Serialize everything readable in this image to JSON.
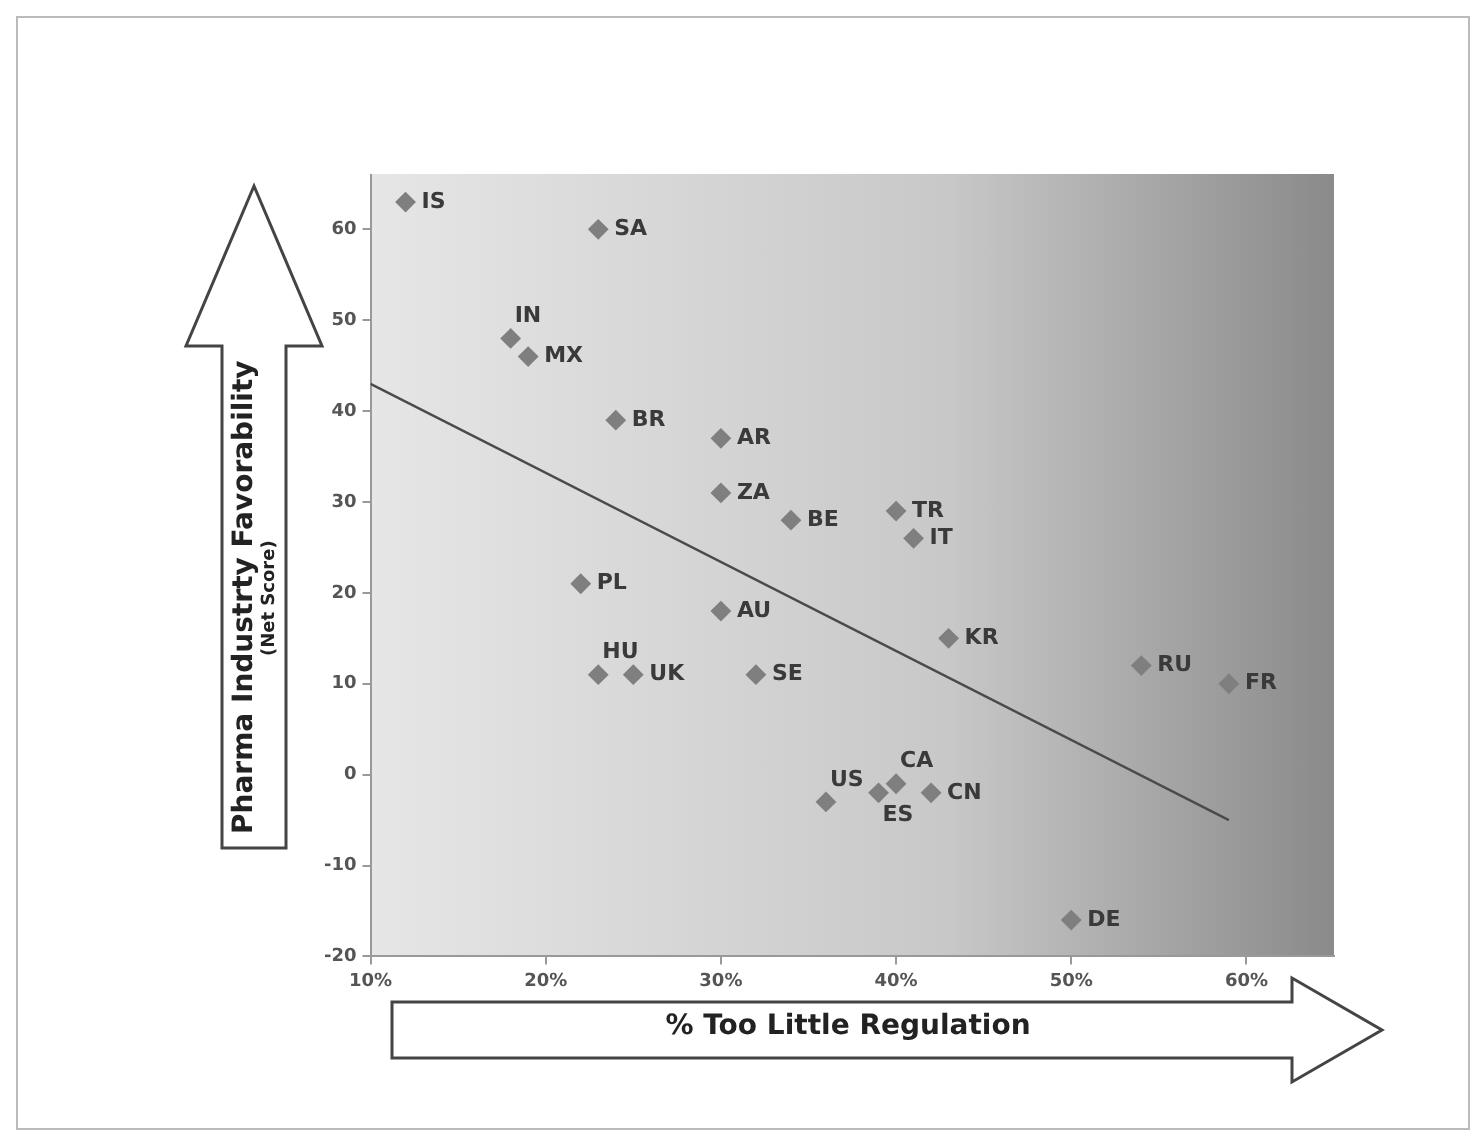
{
  "chart_data": {
    "type": "scatter",
    "xlabel": "% Too Little Regulation",
    "ylabel": "Pharma Industrty Favorability\n(Net Score)",
    "legend": false,
    "xlim": [
      10,
      65
    ],
    "xticks": [
      {
        "value": 10,
        "label": "10%"
      },
      {
        "value": 20,
        "label": "20%"
      },
      {
        "value": 30,
        "label": "30%"
      },
      {
        "value": 40,
        "label": "40%"
      },
      {
        "value": 50,
        "label": "50%"
      },
      {
        "value": 60,
        "label": "60%"
      }
    ],
    "ylim": [
      -20,
      66
    ],
    "yticks": [
      -20,
      -10,
      0,
      10,
      20,
      30,
      40,
      50,
      60
    ],
    "series": [
      {
        "marker": "diamond",
        "color": "#7f7f7f",
        "x": [
          12,
          23,
          18,
          19,
          24,
          30,
          30,
          34,
          40,
          41,
          22,
          30,
          43,
          54,
          59,
          23,
          25,
          32,
          40,
          39,
          42,
          36,
          50
        ],
        "values": [
          63,
          60,
          48,
          46,
          39,
          37,
          31,
          28,
          29,
          26,
          21,
          18,
          15,
          12,
          10,
          11,
          11,
          11,
          -1,
          -2,
          -2,
          -3,
          -16
        ]
      },
      {
        "type": "line",
        "color": "#4a4a4a",
        "x": [
          10,
          59
        ],
        "values": [
          43,
          -5
        ]
      }
    ],
    "annotations": [
      {
        "text": "IS",
        "x": 12,
        "y": 63
      },
      {
        "text": "SA",
        "x": 23,
        "y": 60
      },
      {
        "text": "IN",
        "x": 18,
        "y": 48
      },
      {
        "text": "MX",
        "x": 19,
        "y": 46
      },
      {
        "text": "BR",
        "x": 24,
        "y": 39
      },
      {
        "text": "AR",
        "x": 30,
        "y": 37
      },
      {
        "text": "ZA",
        "x": 30,
        "y": 31
      },
      {
        "text": "BE",
        "x": 34,
        "y": 28
      },
      {
        "text": "TR",
        "x": 40,
        "y": 29
      },
      {
        "text": "IT",
        "x": 41,
        "y": 26
      },
      {
        "text": "PL",
        "x": 22,
        "y": 21
      },
      {
        "text": "AU",
        "x": 30,
        "y": 18
      },
      {
        "text": "KR",
        "x": 43,
        "y": 15
      },
      {
        "text": "RU",
        "x": 54,
        "y": 12
      },
      {
        "text": "FR",
        "x": 59,
        "y": 10
      },
      {
        "text": "HU",
        "x": 23,
        "y": 11
      },
      {
        "text": "UK",
        "x": 25,
        "y": 11
      },
      {
        "text": "SE",
        "x": 32,
        "y": 11
      },
      {
        "text": "CA",
        "x": 40,
        "y": -1
      },
      {
        "text": "ES",
        "x": 39,
        "y": -2
      },
      {
        "text": "CN",
        "x": 42,
        "y": -2
      },
      {
        "text": "US",
        "x": 36,
        "y": -3
      },
      {
        "text": "DE",
        "x": 50,
        "y": -16
      }
    ]
  }
}
